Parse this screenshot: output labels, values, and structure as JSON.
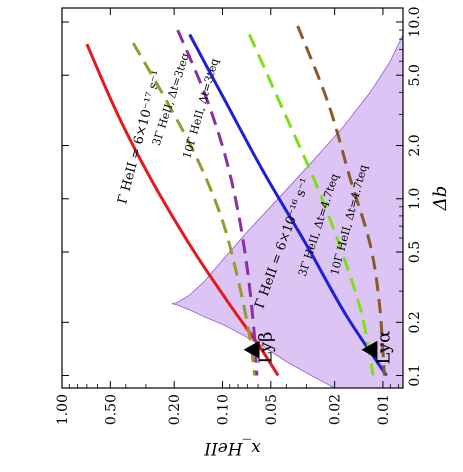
{
  "chart_data": {
    "type": "line",
    "orientation": "rotated-90",
    "x_axis": {
      "label": "x_HeII",
      "scale": "log",
      "range": [
        0.0075,
        1.0
      ],
      "ticks": [
        1.0,
        0.5,
        0.2,
        0.1,
        0.05,
        0.02,
        0.01
      ],
      "tick_labels": [
        "1.00",
        "0.50",
        "0.20",
        "0.10",
        "0.05",
        "0.02",
        "0.01"
      ]
    },
    "y_axis": {
      "label": "Δb",
      "scale": "log",
      "range": [
        0.085,
        12.0
      ],
      "ticks": [
        0.1,
        0.2,
        0.5,
        1.0,
        2.0,
        5.0,
        10.0
      ],
      "tick_labels": [
        "0.1",
        "0.2",
        "0.5",
        "1.0",
        "2.0",
        "5.0",
        "10.0"
      ]
    },
    "shaded_region": {
      "color": "#dcc5f5",
      "edge_color": "#9b59d6",
      "boundary": [
        [
          0.0075,
          8.5
        ],
        [
          0.009,
          6.0
        ],
        [
          0.012,
          4.0
        ],
        [
          0.018,
          2.5
        ],
        [
          0.028,
          1.6
        ],
        [
          0.045,
          1.0
        ],
        [
          0.07,
          0.65
        ],
        [
          0.1,
          0.45
        ],
        [
          0.13,
          0.34
        ],
        [
          0.16,
          0.285
        ],
        [
          0.19,
          0.26
        ],
        [
          0.205,
          0.255
        ],
        [
          0.19,
          0.25
        ],
        [
          0.16,
          0.235
        ],
        [
          0.13,
          0.215
        ],
        [
          0.1,
          0.195
        ],
        [
          0.075,
          0.17
        ],
        [
          0.055,
          0.145
        ],
        [
          0.04,
          0.12
        ],
        [
          0.028,
          0.1
        ],
        [
          0.02,
          0.085
        ],
        [
          0.0075,
          0.085
        ]
      ]
    },
    "series": [
      {
        "color": "#e31a1c",
        "dash": "solid",
        "label_text": "Γ HeII = 6×10⁻¹⁷ s⁻¹",
        "points": [
          [
            0.7,
            7.5
          ],
          [
            0.45,
            3.0
          ],
          [
            0.28,
            1.3
          ],
          [
            0.16,
            0.55
          ],
          [
            0.095,
            0.27
          ],
          [
            0.06,
            0.15
          ],
          [
            0.045,
            0.1
          ]
        ]
      },
      {
        "color": "#9a9a2a",
        "dash": "dashed",
        "label_text": "3Γ HeII, Δt=3teq",
        "points": [
          [
            0.36,
            7.6
          ],
          [
            0.22,
            3.5
          ],
          [
            0.14,
            1.6
          ],
          [
            0.1,
            0.75
          ],
          [
            0.08,
            0.35
          ],
          [
            0.068,
            0.17
          ],
          [
            0.063,
            0.1
          ]
        ]
      },
      {
        "color": "#8b2fa6",
        "dash": "dashed",
        "label_text": "10Γ HeII, Δt=3teq",
        "points": [
          [
            0.19,
            9.0
          ],
          [
            0.13,
            4.0
          ],
          [
            0.097,
            1.8
          ],
          [
            0.08,
            0.85
          ],
          [
            0.07,
            0.4
          ],
          [
            0.064,
            0.19
          ],
          [
            0.061,
            0.1
          ]
        ]
      },
      {
        "color": "#1f1fd6",
        "dash": "solid",
        "label_text": "Γ HeII = 6×10⁻¹⁶ s⁻¹",
        "points": [
          [
            0.16,
            8.5
          ],
          [
            0.095,
            3.5
          ],
          [
            0.055,
            1.4
          ],
          [
            0.03,
            0.55
          ],
          [
            0.017,
            0.22
          ],
          [
            0.0095,
            0.1
          ]
        ]
      },
      {
        "color": "#7ddf1a",
        "dash": "dashed",
        "label_text": "3Γ HeII, Δt=4.7teq",
        "points": [
          [
            0.068,
            8.5
          ],
          [
            0.042,
            3.2
          ],
          [
            0.026,
            1.2
          ],
          [
            0.018,
            0.5
          ],
          [
            0.0135,
            0.22
          ],
          [
            0.0115,
            0.1
          ]
        ]
      },
      {
        "color": "#8b5a2b",
        "dash": "dashed",
        "label_text": "10Γ HeII, Δt=4.7teq",
        "points": [
          [
            0.034,
            9.5
          ],
          [
            0.022,
            3.5
          ],
          [
            0.016,
            1.3
          ],
          [
            0.012,
            0.55
          ],
          [
            0.0105,
            0.25
          ],
          [
            0.0098,
            0.1
          ]
        ]
      }
    ],
    "markers": [
      {
        "label": "Lyβ",
        "x": 0.064,
        "y": 0.14
      },
      {
        "label": "Lyα",
        "x": 0.0118,
        "y": 0.14
      }
    ]
  }
}
